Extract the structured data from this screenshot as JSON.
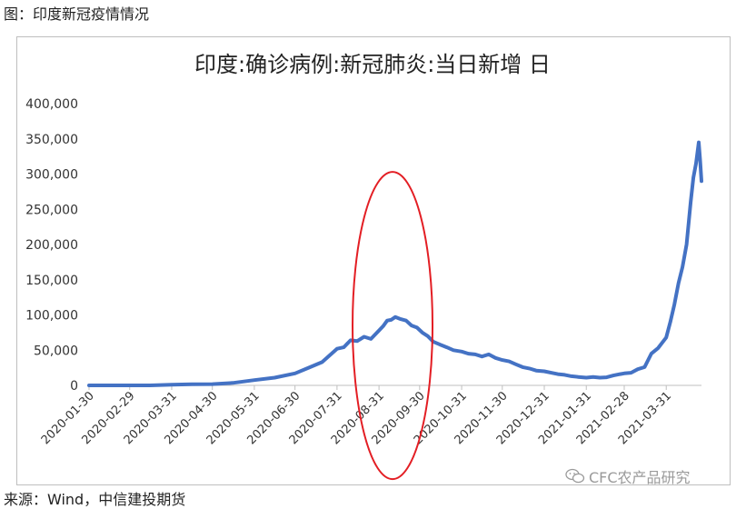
{
  "caption": "图：印度新冠疫情情况",
  "source": "来源：Wind，中信建投期货",
  "watermark": "CFC农产品研究",
  "watermark_icon": "wechat-icon",
  "colors": {
    "line": "#4472C4",
    "ellipse": "#E31E24",
    "axis": "#bfbfbf",
    "text": "#333333"
  },
  "chart_data": {
    "type": "line",
    "title": "印度:确诊病例:新冠肺炎:当日新增 日",
    "xlabel": "",
    "ylabel": "",
    "ylim": [
      0,
      400000
    ],
    "yticks": [
      0,
      50000,
      100000,
      150000,
      200000,
      250000,
      300000,
      350000,
      400000
    ],
    "ytick_labels": [
      "0",
      "50,000",
      "100,000",
      "150,000",
      "200,000",
      "250,000",
      "300,000",
      "350,000",
      "400,000"
    ],
    "xlim": [
      "2020-01-30",
      "2021-04-26"
    ],
    "xtick_labels": [
      "2020-01-30",
      "2020-02-29",
      "2020-03-31",
      "2020-04-30",
      "2020-05-31",
      "2020-06-30",
      "2020-07-31",
      "2020-08-31",
      "2020-09-30",
      "2020-10-31",
      "2020-11-30",
      "2020-12-31",
      "2021-01-31",
      "2021-02-28",
      "2021-03-31"
    ],
    "grid": false,
    "legend": "none",
    "series": [
      {
        "name": "",
        "x": [
          "2020-01-30",
          "2020-02-29",
          "2020-03-15",
          "2020-03-31",
          "2020-04-15",
          "2020-04-30",
          "2020-05-15",
          "2020-05-31",
          "2020-06-15",
          "2020-06-30",
          "2020-07-10",
          "2020-07-20",
          "2020-07-31",
          "2020-08-05",
          "2020-08-10",
          "2020-08-15",
          "2020-08-20",
          "2020-08-25",
          "2020-08-31",
          "2020-09-03",
          "2020-09-06",
          "2020-09-09",
          "2020-09-12",
          "2020-09-16",
          "2020-09-20",
          "2020-09-24",
          "2020-09-28",
          "2020-10-02",
          "2020-10-06",
          "2020-10-10",
          "2020-10-15",
          "2020-10-20",
          "2020-10-25",
          "2020-10-31",
          "2020-11-05",
          "2020-11-10",
          "2020-11-15",
          "2020-11-20",
          "2020-11-25",
          "2020-11-30",
          "2020-12-05",
          "2020-12-10",
          "2020-12-15",
          "2020-12-20",
          "2020-12-25",
          "2020-12-31",
          "2021-01-05",
          "2021-01-10",
          "2021-01-15",
          "2021-01-20",
          "2021-01-25",
          "2021-01-31",
          "2021-02-05",
          "2021-02-10",
          "2021-02-15",
          "2021-02-20",
          "2021-02-25",
          "2021-02-28",
          "2021-03-05",
          "2021-03-10",
          "2021-03-15",
          "2021-03-20",
          "2021-03-25",
          "2021-03-31",
          "2021-04-03",
          "2021-04-06",
          "2021-04-09",
          "2021-04-12",
          "2021-04-15",
          "2021-04-18",
          "2021-04-20",
          "2021-04-22",
          "2021-04-24",
          "2021-04-25",
          "2021-04-26"
        ],
        "values": [
          0,
          0,
          50,
          1000,
          1500,
          1800,
          3500,
          7500,
          11000,
          17000,
          25000,
          33000,
          52000,
          54000,
          64000,
          63000,
          69000,
          66000,
          78000,
          84000,
          92000,
          93000,
          97000,
          94000,
          92000,
          85000,
          82000,
          75000,
          70000,
          62000,
          58000,
          54000,
          50000,
          48000,
          45000,
          44000,
          41000,
          44000,
          39000,
          36000,
          34000,
          30000,
          26000,
          24000,
          21000,
          20000,
          18000,
          16000,
          15000,
          13000,
          12000,
          11000,
          12000,
          11000,
          11500,
          14000,
          16000,
          17000,
          18000,
          23000,
          26000,
          45000,
          53000,
          68000,
          90000,
          115000,
          145000,
          168000,
          200000,
          260000,
          295000,
          315000,
          345000,
          320000,
          290000
        ]
      }
    ],
    "annotations": [
      {
        "type": "ellipse",
        "color": "#E31E24",
        "x_center": "2020-09-10",
        "y_center": 85000
      }
    ]
  }
}
